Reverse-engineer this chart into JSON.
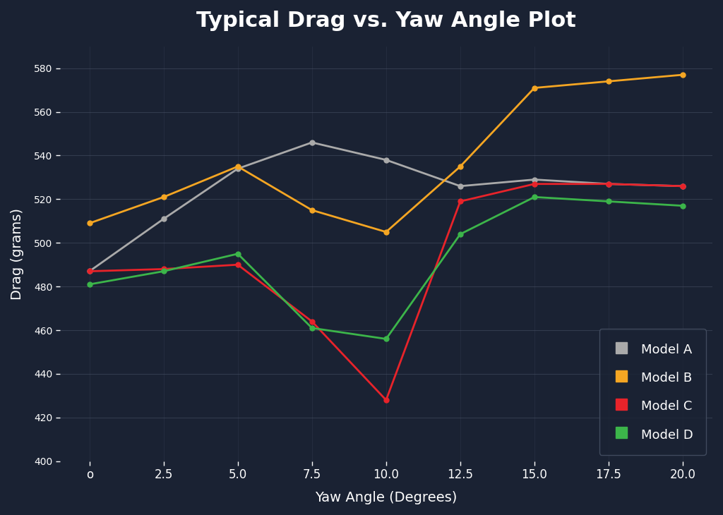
{
  "title": "Typical Drag vs. Yaw Angle Plot",
  "xlabel": "Yaw Angle (Degrees)",
  "ylabel": "Drag (grams)",
  "background_color": "#1a2233",
  "plot_bg_color": "#1a2233",
  "grid_color": "#4a5568",
  "text_color": "#ffffff",
  "x_values": [
    0,
    2.5,
    5.0,
    7.5,
    10.0,
    12.5,
    15.0,
    17.5,
    20.0
  ],
  "model_A": {
    "label": "Model A",
    "color": "#aaaaaa",
    "values": [
      487,
      511,
      534,
      546,
      538,
      526,
      529,
      527,
      526
    ]
  },
  "model_B": {
    "label": "Model B",
    "color": "#f5a623",
    "values": [
      509,
      521,
      535,
      515,
      505,
      535,
      571,
      574,
      577
    ]
  },
  "model_C": {
    "label": "Model C",
    "color": "#e8232a",
    "values": [
      487,
      488,
      490,
      464,
      428,
      519,
      527,
      527,
      526
    ]
  },
  "model_D": {
    "label": "Model D",
    "color": "#3cb54a",
    "values": [
      481,
      487,
      495,
      461,
      456,
      504,
      521,
      519,
      517
    ]
  },
  "ylim": [
    400,
    590
  ],
  "yticks": [
    400,
    420,
    440,
    460,
    480,
    500,
    520,
    540,
    560,
    580
  ],
  "legend_facecolor": "#1a2233",
  "legend_edgecolor": "#4a5568"
}
